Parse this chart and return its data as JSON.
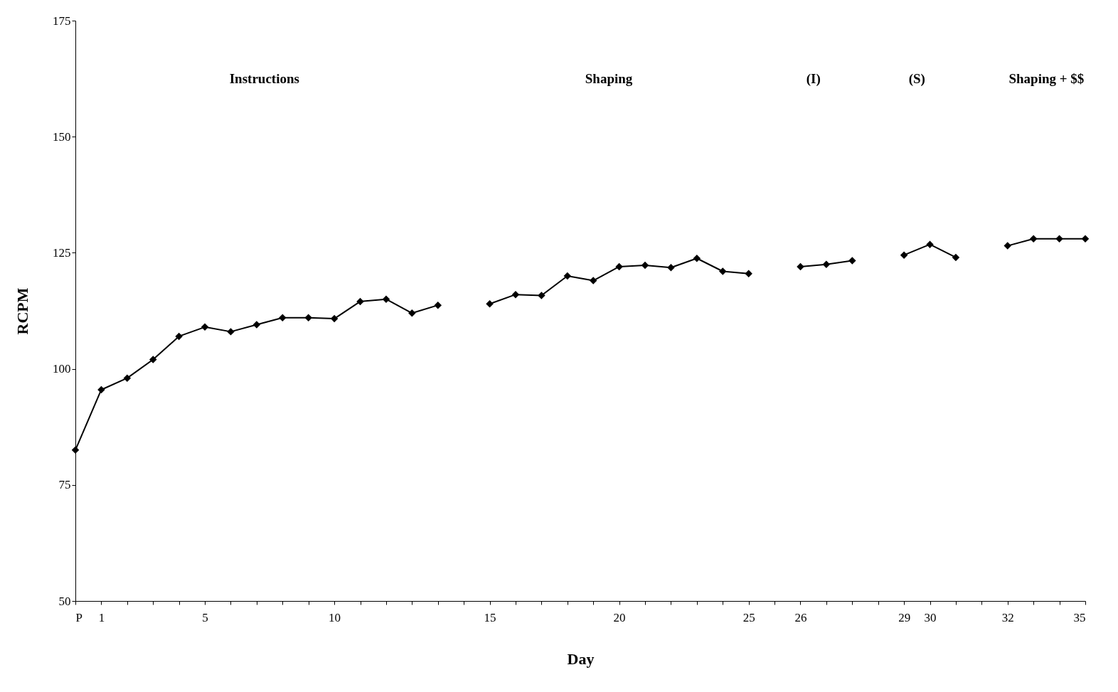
{
  "chart_data": {
    "type": "line",
    "xlabel": "Day",
    "ylabel": "RCPM",
    "categories": [
      "P",
      "1",
      null,
      null,
      null,
      "5",
      null,
      null,
      null,
      null,
      "10",
      null,
      null,
      null,
      null,
      null,
      "15",
      null,
      null,
      null,
      null,
      "20",
      null,
      null,
      null,
      null,
      "25",
      null,
      "26",
      null,
      null,
      null,
      "29",
      "30",
      null,
      null,
      "32",
      null,
      null,
      "35"
    ],
    "series": [
      {
        "color": "#000000",
        "values": [
          82.5,
          95.5,
          98,
          102,
          107,
          109,
          108,
          109.5,
          111,
          111,
          110.8,
          114.5,
          115,
          112,
          113.7,
          null,
          114,
          116,
          115.8,
          120,
          119,
          122,
          122.3,
          121.8,
          123.8,
          121,
          120.5,
          null,
          122,
          122.5,
          123.3,
          null,
          124.5,
          126.8,
          124,
          null,
          126.5,
          128,
          128,
          128
        ]
      }
    ],
    "ylim": [
      50,
      175
    ],
    "yticks": [
      50,
      75,
      100,
      125,
      150,
      175
    ],
    "grid": false,
    "marker": "diamond",
    "line_style": "solid",
    "annotations": [
      "Instructions",
      "Shaping",
      "(I)",
      "(S)",
      "Shaping + $$"
    ]
  }
}
